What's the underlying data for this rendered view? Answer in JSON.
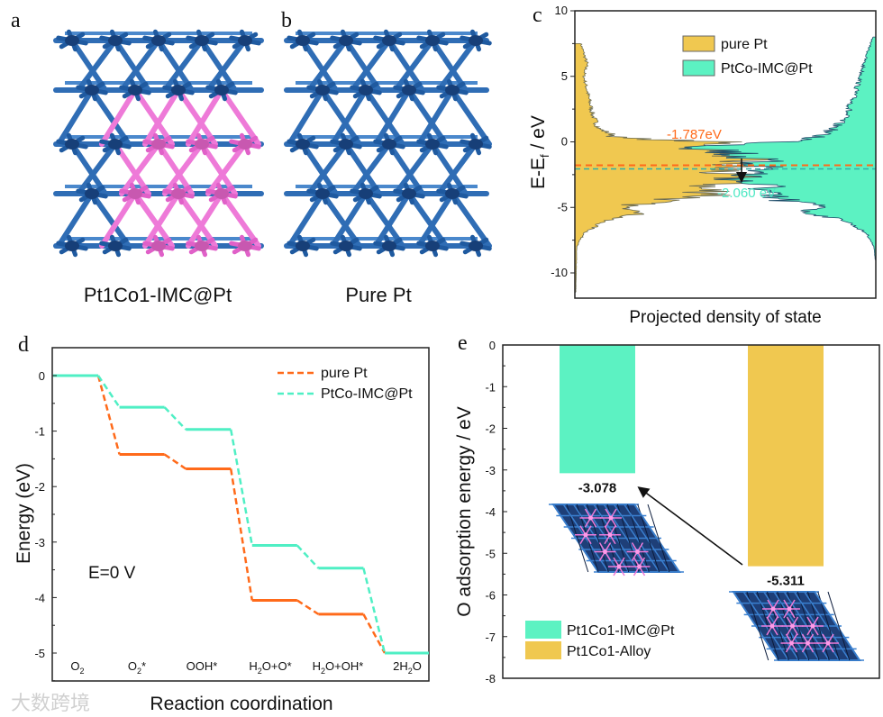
{
  "panels": {
    "a": {
      "label": "a",
      "caption": "Pt1Co1-IMC@Pt"
    },
    "b": {
      "label": "b",
      "caption": "Pure Pt"
    },
    "c": {
      "label": "c"
    },
    "d": {
      "label": "d"
    },
    "e": {
      "label": "e"
    }
  },
  "watermark": "大数跨境",
  "colors": {
    "pure_pt_fill": "#f0c850",
    "ptco_fill": "#5cf2c2",
    "orange": "#ff6a1a",
    "teal": "#4fefc4",
    "lattice_blue": "#2f6db5",
    "lattice_pink": "#ee7ad8"
  },
  "chart_data": [
    {
      "id": "c",
      "type": "area",
      "orientation": "horizontal-density",
      "ylabel_main": "E-E",
      "ylabel_sub": "f",
      "ylabel_tail": " / eV",
      "xlabel": "Projected density of state",
      "ylim": [
        -12,
        10
      ],
      "yticks": [
        10,
        5,
        0,
        -5,
        -10
      ],
      "legend": {
        "placement": "top-right",
        "entries": [
          "pure Pt",
          "PtCo-IMC@Pt"
        ]
      },
      "series": [
        {
          "name": "pure Pt",
          "side": "left",
          "profile": [
            [
              7.5,
              0.02
            ],
            [
              6,
              0.04
            ],
            [
              5,
              0.03
            ],
            [
              3,
              0.05
            ],
            [
              2,
              0.06
            ],
            [
              1,
              0.08
            ],
            [
              0.3,
              0.15
            ],
            [
              0,
              0.45
            ],
            [
              -0.5,
              0.55
            ],
            [
              -1,
              0.6
            ],
            [
              -1.5,
              0.55
            ],
            [
              -2,
              0.5
            ],
            [
              -2.5,
              0.48
            ],
            [
              -3,
              0.6
            ],
            [
              -3.5,
              0.4
            ],
            [
              -4,
              0.5
            ],
            [
              -4.5,
              0.28
            ],
            [
              -5,
              0.15
            ],
            [
              -5.3,
              0.25
            ],
            [
              -6,
              0.1
            ],
            [
              -7,
              0.03
            ],
            [
              -8,
              0.006
            ],
            [
              -11.5,
              0.003
            ]
          ]
        },
        {
          "name": "PtCo-IMC@Pt",
          "side": "right",
          "profile": [
            [
              8,
              0.01
            ],
            [
              6,
              0.04
            ],
            [
              5,
              0.05
            ],
            [
              3,
              0.08
            ],
            [
              2,
              0.1
            ],
            [
              1,
              0.14
            ],
            [
              0.3,
              0.2
            ],
            [
              0,
              0.3
            ],
            [
              -0.4,
              0.55
            ],
            [
              -1,
              0.45
            ],
            [
              -1.5,
              0.4
            ],
            [
              -2,
              0.35
            ],
            [
              -2.5,
              0.42
            ],
            [
              -3,
              0.45
            ],
            [
              -3.5,
              0.35
            ],
            [
              -4,
              0.4
            ],
            [
              -4.5,
              0.3
            ],
            [
              -5,
              0.15
            ],
            [
              -5.3,
              0.25
            ],
            [
              -6,
              0.1
            ],
            [
              -7,
              0.03
            ],
            [
              -8,
              0.006
            ],
            [
              -9,
              0.002
            ]
          ]
        }
      ],
      "annotations": [
        {
          "text": "-1.787eV",
          "value": -1.787,
          "series": "pure Pt"
        },
        {
          "text": "-2.060 eV",
          "value": -2.06,
          "series": "PtCo-IMC@Pt"
        }
      ]
    },
    {
      "id": "d",
      "type": "line",
      "style": "energy-step-diagram",
      "xlabel": "Reaction coordination",
      "ylabel": "Energy (eV)",
      "ylim": [
        -5.5,
        0.5
      ],
      "yticks": [
        0,
        -1,
        -2,
        -3,
        -4,
        -5
      ],
      "categories": [
        "O2",
        "O2*",
        "OOH*",
        "H2O+O*",
        "H2O+OH*",
        "2H2O"
      ],
      "annotation": "E=0 V",
      "legend": {
        "placement": "top-right",
        "entries": [
          "pure Pt",
          "PtCo-IMC@Pt"
        ]
      },
      "series": [
        {
          "name": "pure Pt",
          "values": [
            0,
            -1.42,
            -1.68,
            -4.05,
            -4.3,
            -5.0
          ]
        },
        {
          "name": "PtCo-IMC@Pt",
          "values": [
            0,
            -0.57,
            -0.97,
            -3.06,
            -3.47,
            -5.0
          ]
        }
      ]
    },
    {
      "id": "e",
      "type": "bar",
      "ylabel": "O adsorption energy / eV",
      "ylim": [
        -8,
        0
      ],
      "yticks": [
        0,
        -1,
        -2,
        -3,
        -4,
        -5,
        -6,
        -7,
        -8
      ],
      "categories": [
        "Pt1Co1-IMC@Pt",
        "Pt1Co1-Alloy"
      ],
      "values": [
        -3.078,
        -5.311
      ],
      "value_labels": [
        "-3.078",
        "-5.311"
      ],
      "legend": {
        "placement": "bottom-left",
        "entries": [
          "Pt1Co1-IMC@Pt",
          "Pt1Co1-Alloy"
        ]
      }
    }
  ]
}
